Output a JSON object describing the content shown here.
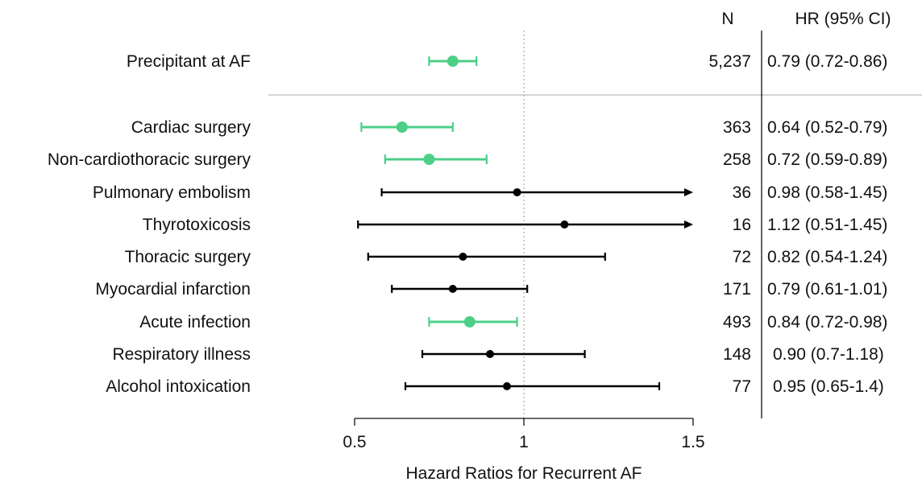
{
  "chart_data": {
    "type": "forest",
    "xlabel": "Hazard Ratios for Recurrent AF",
    "xlim": [
      0.5,
      1.5
    ],
    "xticks": [
      0.5,
      1,
      1.5
    ],
    "xtick_labels": [
      "0.5",
      "1",
      "1.5"
    ],
    "reference_line": 1,
    "columns": {
      "n_header": "N",
      "hr_header": "HR (95% CI)"
    },
    "colors": {
      "significant": "#4ccf86",
      "nonsignificant": "#000000"
    },
    "rows": [
      {
        "label": "Precipitant at AF",
        "hr": 0.79,
        "lo": 0.72,
        "hi": 0.86,
        "n": "5,237",
        "hr_text": "0.79 (0.72-0.86)",
        "significant": true,
        "arrow_right": false,
        "group": "overall"
      },
      {
        "label": "Cardiac surgery",
        "hr": 0.64,
        "lo": 0.52,
        "hi": 0.79,
        "n": "363",
        "hr_text": "0.64 (0.52-0.79)",
        "significant": true,
        "arrow_right": false,
        "group": "sub"
      },
      {
        "label": "Non-cardiothoracic surgery",
        "hr": 0.72,
        "lo": 0.59,
        "hi": 0.89,
        "n": "258",
        "hr_text": "0.72 (0.59-0.89)",
        "significant": true,
        "arrow_right": false,
        "group": "sub"
      },
      {
        "label": "Pulmonary embolism",
        "hr": 0.98,
        "lo": 0.58,
        "hi": 1.45,
        "n": "36",
        "hr_text": "0.98 (0.58-1.45)",
        "significant": false,
        "arrow_right": true,
        "group": "sub"
      },
      {
        "label": "Thyrotoxicosis",
        "hr": 1.12,
        "lo": 0.51,
        "hi": 1.45,
        "n": "16",
        "hr_text": "1.12 (0.51-1.45)",
        "significant": false,
        "arrow_right": true,
        "group": "sub"
      },
      {
        "label": "Thoracic surgery",
        "hr": 0.82,
        "lo": 0.54,
        "hi": 1.24,
        "n": "72",
        "hr_text": "0.82 (0.54-1.24)",
        "significant": false,
        "arrow_right": false,
        "group": "sub"
      },
      {
        "label": "Myocardial infarction",
        "hr": 0.79,
        "lo": 0.61,
        "hi": 1.01,
        "n": "171",
        "hr_text": "0.79 (0.61-1.01)",
        "significant": false,
        "arrow_right": false,
        "group": "sub"
      },
      {
        "label": "Acute infection",
        "hr": 0.84,
        "lo": 0.72,
        "hi": 0.98,
        "n": "493",
        "hr_text": "0.84 (0.72-0.98)",
        "significant": true,
        "arrow_right": false,
        "group": "sub"
      },
      {
        "label": "Respiratory illness",
        "hr": 0.9,
        "lo": 0.7,
        "hi": 1.18,
        "n": "148",
        "hr_text": "0.90 (0.7-1.18)",
        "significant": false,
        "arrow_right": false,
        "group": "sub"
      },
      {
        "label": "Alcohol intoxication",
        "hr": 0.95,
        "lo": 0.65,
        "hi": 1.4,
        "n": "77",
        "hr_text": "0.95 (0.65-1.4)",
        "significant": false,
        "arrow_right": false,
        "group": "sub"
      }
    ]
  }
}
